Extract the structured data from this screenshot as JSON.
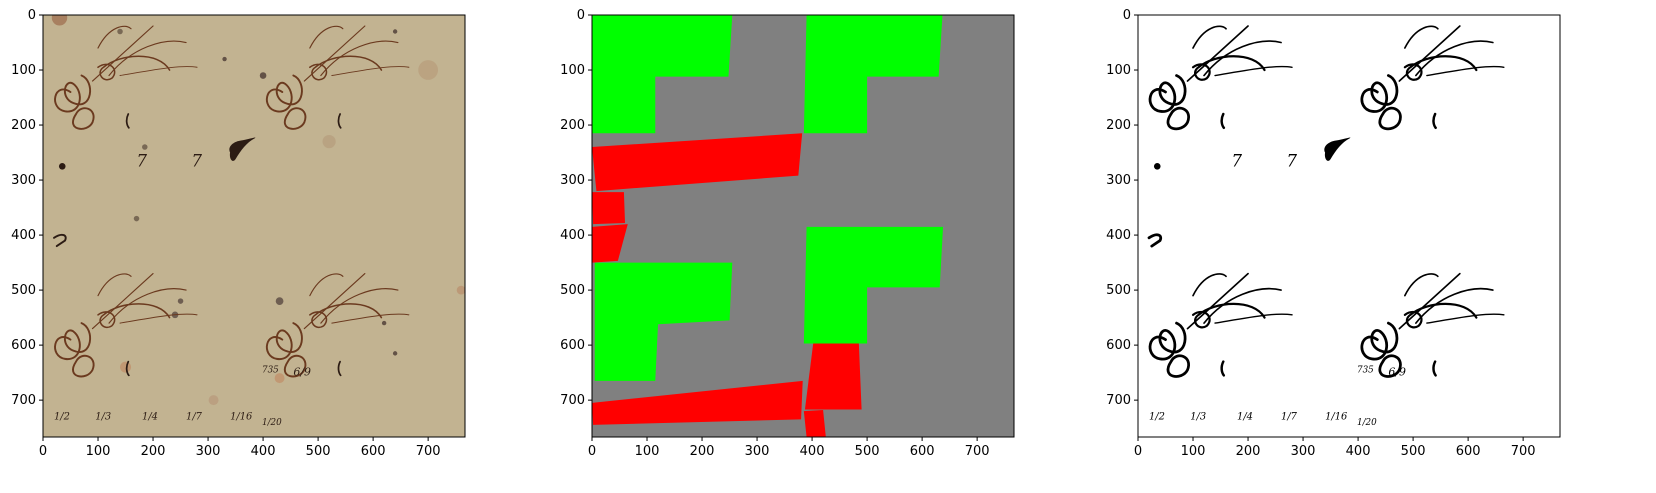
{
  "chart_data": [
    {
      "type": "image",
      "panel": "left",
      "content": "manuscript scan (tiled 2x2)",
      "background_color": "#c2b391",
      "ink_color": "#6b3a1f",
      "dark_ink_color": "#2c1c14",
      "xlim": [
        0,
        767
      ],
      "ylim": [
        767,
        0
      ],
      "xticks": [
        0,
        100,
        200,
        300,
        400,
        500,
        600,
        700
      ],
      "yticks": [
        0,
        100,
        200,
        300,
        400,
        500,
        600,
        700
      ],
      "annotations": [
        "7",
        "7",
        "1/2",
        "1/3",
        "1/4",
        "1/7",
        "1/16",
        "735",
        "1/20",
        "6/9"
      ]
    },
    {
      "type": "image",
      "panel": "middle",
      "content": "region mask",
      "background_color": "#808080",
      "colors": {
        "green": "#00ff00",
        "red": "#ff0000"
      },
      "xlim": [
        0,
        767
      ],
      "ylim": [
        767,
        0
      ],
      "xticks": [
        0,
        100,
        200,
        300,
        400,
        500,
        600,
        700
      ],
      "yticks": [
        0,
        100,
        200,
        300,
        400,
        500,
        600,
        700
      ],
      "regions": [
        {
          "color": "green",
          "points": [
            [
              0,
              0
            ],
            [
              255,
              0
            ],
            [
              248,
              112
            ],
            [
              115,
              112
            ],
            [
              115,
              215
            ],
            [
              0,
              215
            ]
          ]
        },
        {
          "color": "green",
          "points": [
            [
              390,
              0
            ],
            [
              637,
              0
            ],
            [
              630,
              112
            ],
            [
              500,
              112
            ],
            [
              500,
              215
            ],
            [
              385,
              215
            ]
          ]
        },
        {
          "color": "red",
          "points": [
            [
              0,
              240
            ],
            [
              382,
              215
            ],
            [
              375,
              292
            ],
            [
              8,
              320
            ]
          ]
        },
        {
          "color": "red",
          "points": [
            [
              0,
              322
            ],
            [
              58,
              322
            ],
            [
              60,
              378
            ],
            [
              2,
              380
            ]
          ]
        },
        {
          "color": "red",
          "points": [
            [
              0,
              385
            ],
            [
              65,
              380
            ],
            [
              47,
              447
            ],
            [
              0,
              450
            ]
          ]
        },
        {
          "color": "green",
          "points": [
            [
              5,
              450
            ],
            [
              255,
              450
            ],
            [
              250,
              555
            ],
            [
              120,
              562
            ],
            [
              115,
              665
            ],
            [
              5,
              665
            ]
          ]
        },
        {
          "color": "green",
          "points": [
            [
              390,
              385
            ],
            [
              638,
              385
            ],
            [
              632,
              495
            ],
            [
              500,
              495
            ],
            [
              500,
              597
            ],
            [
              385,
              597
            ]
          ]
        },
        {
          "color": "red",
          "points": [
            [
              0,
              705
            ],
            [
              383,
              665
            ],
            [
              380,
              735
            ],
            [
              2,
              745
            ]
          ]
        },
        {
          "color": "red",
          "points": [
            [
              402,
              597
            ],
            [
              485,
              597
            ],
            [
              490,
              717
            ],
            [
              387,
              717
            ]
          ]
        },
        {
          "color": "red",
          "points": [
            [
              385,
              720
            ],
            [
              420,
              718
            ],
            [
              425,
              767
            ],
            [
              390,
              767
            ]
          ]
        }
      ]
    },
    {
      "type": "image",
      "panel": "right",
      "content": "binarized manuscript (tiled 2x2)",
      "background_color": "#ffffff",
      "ink_color": "#000000",
      "xlim": [
        0,
        767
      ],
      "ylim": [
        767,
        0
      ],
      "xticks": [
        0,
        100,
        200,
        300,
        400,
        500,
        600,
        700
      ],
      "yticks": [
        0,
        100,
        200,
        300,
        400,
        500,
        600,
        700
      ],
      "annotations": [
        "7",
        "7",
        "1/2",
        "1/3",
        "1/4",
        "1/7",
        "1/16",
        "735",
        "1/20",
        "6/9"
      ]
    }
  ]
}
